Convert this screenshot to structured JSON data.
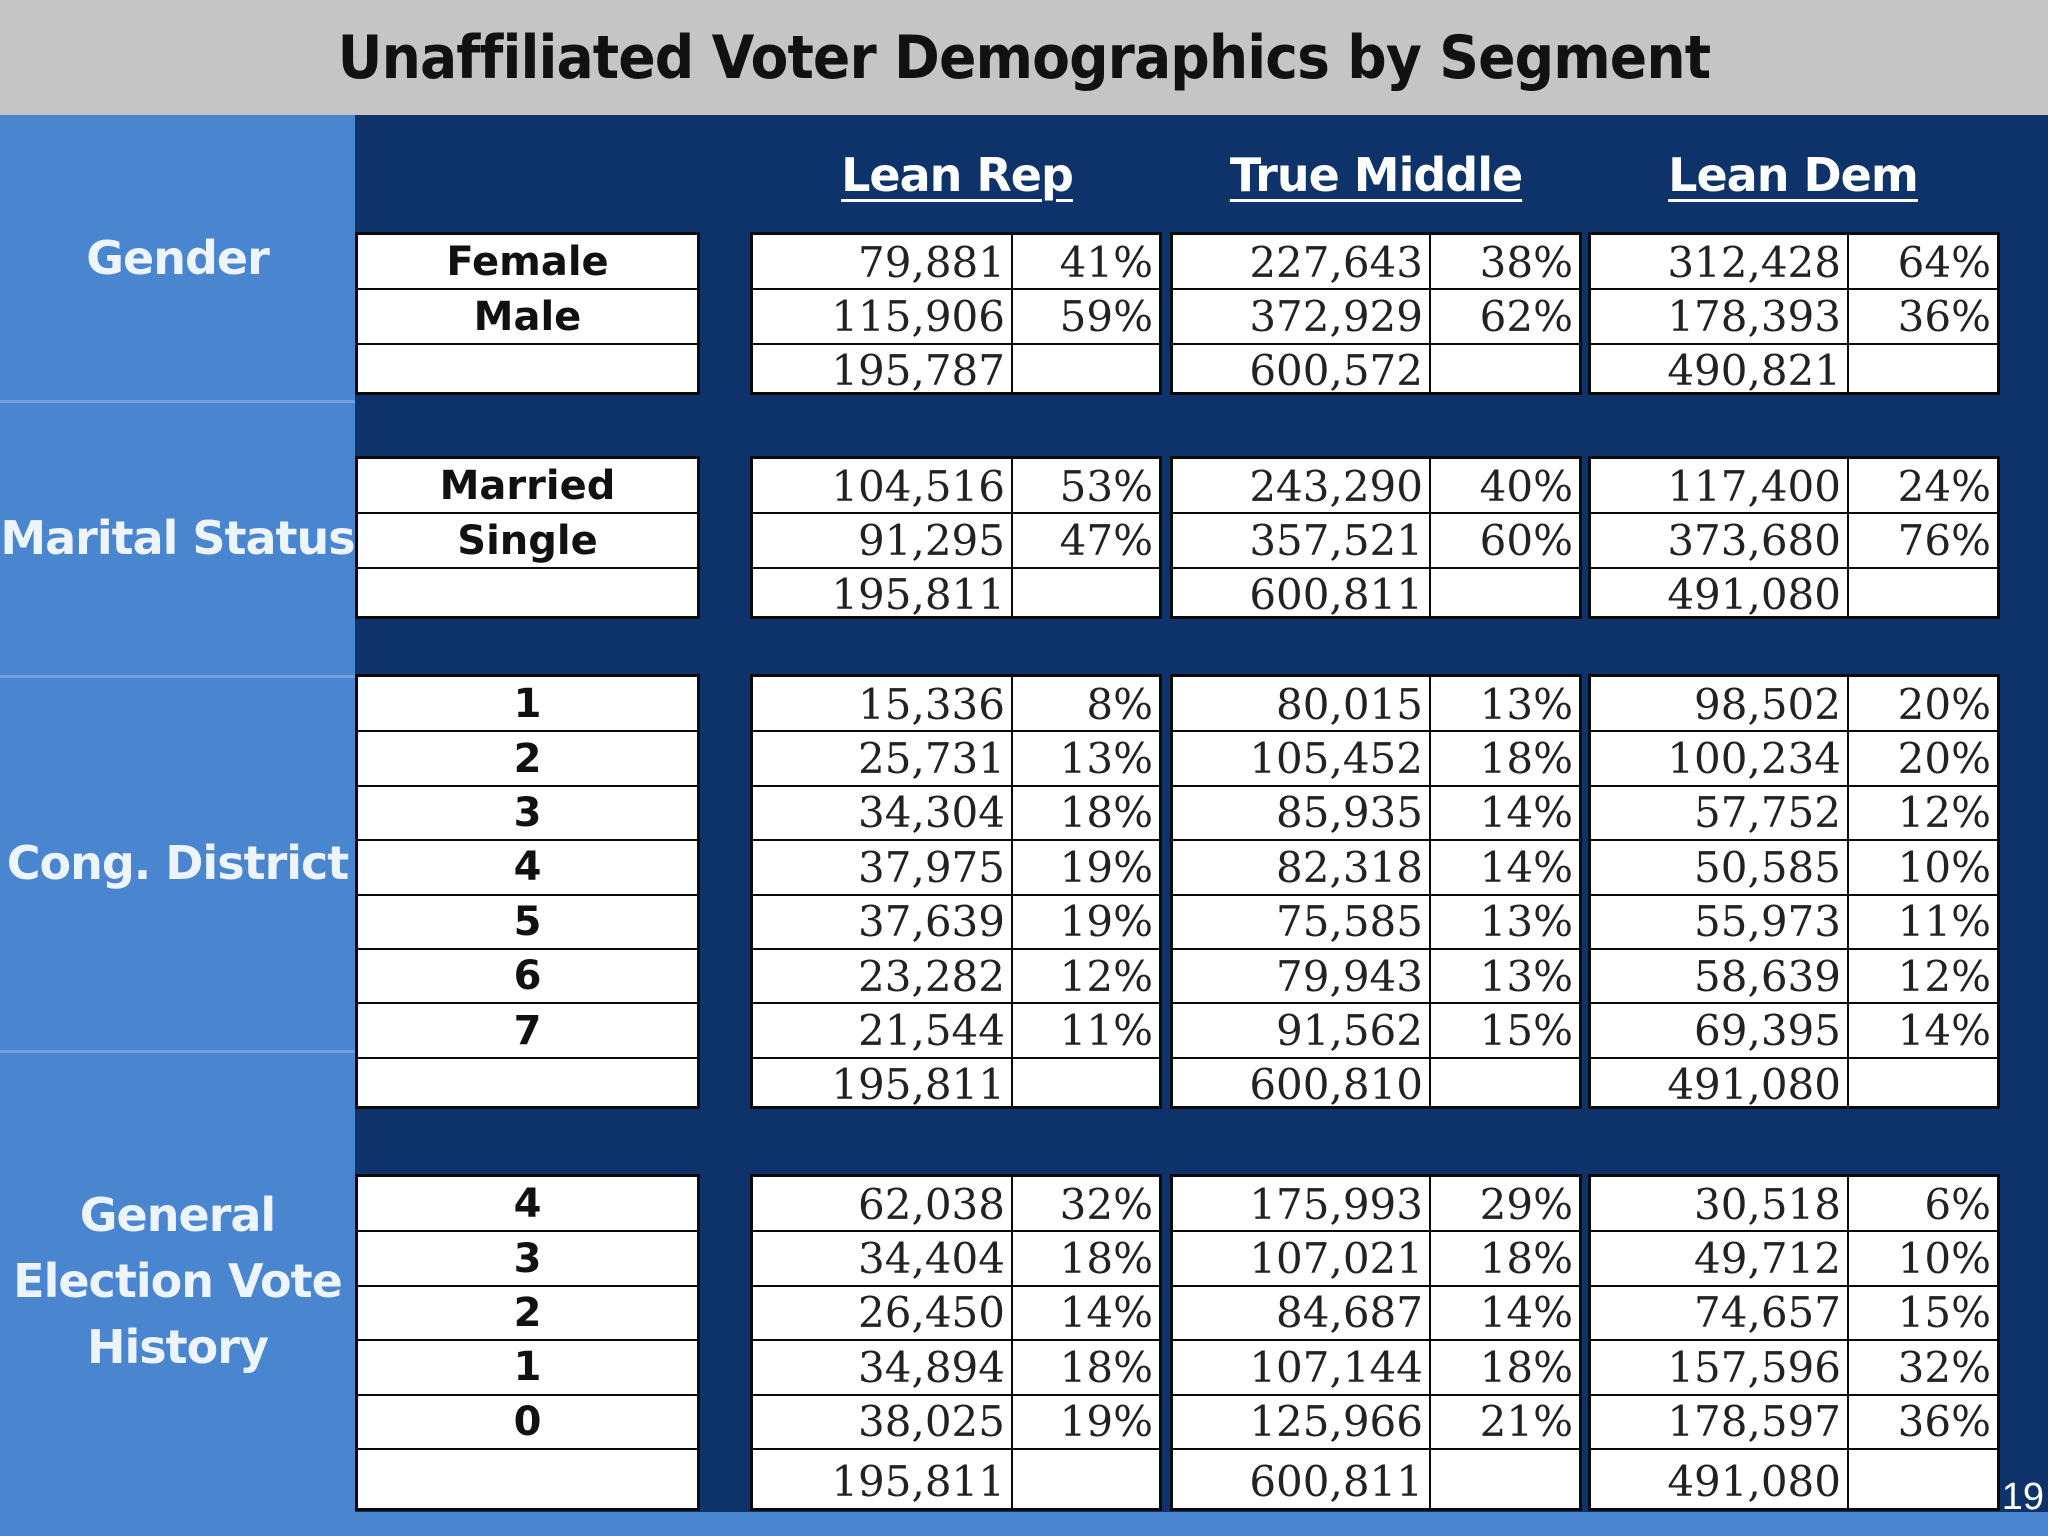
{
  "title": "Unaffiliated Voter Demographics by Segment",
  "page_number": "19",
  "segments": [
    "Lean Rep",
    "True Middle",
    "Lean Dem"
  ],
  "sections": [
    {
      "label": "Gender",
      "rows": [
        {
          "category": "Female",
          "values": [
            [
              "79,881",
              "41%"
            ],
            [
              "227,643",
              "38%"
            ],
            [
              "312,428",
              "64%"
            ]
          ]
        },
        {
          "category": "Male",
          "values": [
            [
              "115,906",
              "59%"
            ],
            [
              "372,929",
              "62%"
            ],
            [
              "178,393",
              "36%"
            ]
          ]
        },
        {
          "category": "",
          "values": [
            [
              "195,787",
              ""
            ],
            [
              "600,572",
              ""
            ],
            [
              "490,821",
              ""
            ]
          ]
        }
      ]
    },
    {
      "label": "Marital Status",
      "rows": [
        {
          "category": "Married",
          "values": [
            [
              "104,516",
              "53%"
            ],
            [
              "243,290",
              "40%"
            ],
            [
              "117,400",
              "24%"
            ]
          ]
        },
        {
          "category": "Single",
          "values": [
            [
              "91,295",
              "47%"
            ],
            [
              "357,521",
              "60%"
            ],
            [
              "373,680",
              "76%"
            ]
          ]
        },
        {
          "category": "",
          "values": [
            [
              "195,811",
              ""
            ],
            [
              "600,811",
              ""
            ],
            [
              "491,080",
              ""
            ]
          ]
        }
      ]
    },
    {
      "label": "Cong. District",
      "rows": [
        {
          "category": "1",
          "values": [
            [
              "15,336",
              "8%"
            ],
            [
              "80,015",
              "13%"
            ],
            [
              "98,502",
              "20%"
            ]
          ]
        },
        {
          "category": "2",
          "values": [
            [
              "25,731",
              "13%"
            ],
            [
              "105,452",
              "18%"
            ],
            [
              "100,234",
              "20%"
            ]
          ]
        },
        {
          "category": "3",
          "values": [
            [
              "34,304",
              "18%"
            ],
            [
              "85,935",
              "14%"
            ],
            [
              "57,752",
              "12%"
            ]
          ]
        },
        {
          "category": "4",
          "values": [
            [
              "37,975",
              "19%"
            ],
            [
              "82,318",
              "14%"
            ],
            [
              "50,585",
              "10%"
            ]
          ]
        },
        {
          "category": "5",
          "values": [
            [
              "37,639",
              "19%"
            ],
            [
              "75,585",
              "13%"
            ],
            [
              "55,973",
              "11%"
            ]
          ]
        },
        {
          "category": "6",
          "values": [
            [
              "23,282",
              "12%"
            ],
            [
              "79,943",
              "13%"
            ],
            [
              "58,639",
              "12%"
            ]
          ]
        },
        {
          "category": "7",
          "values": [
            [
              "21,544",
              "11%"
            ],
            [
              "91,562",
              "15%"
            ],
            [
              "69,395",
              "14%"
            ]
          ]
        },
        {
          "category": "",
          "values": [
            [
              "195,811",
              ""
            ],
            [
              "600,810",
              ""
            ],
            [
              "491,080",
              ""
            ]
          ]
        }
      ]
    },
    {
      "label": "General Election Vote History",
      "label_lines": [
        "General",
        "Election Vote",
        "History"
      ],
      "rows": [
        {
          "category": "4",
          "values": [
            [
              "62,038",
              "32%"
            ],
            [
              "175,993",
              "29%"
            ],
            [
              "30,518",
              "6%"
            ]
          ]
        },
        {
          "category": "3",
          "values": [
            [
              "34,404",
              "18%"
            ],
            [
              "107,021",
              "18%"
            ],
            [
              "49,712",
              "10%"
            ]
          ]
        },
        {
          "category": "2",
          "values": [
            [
              "26,450",
              "14%"
            ],
            [
              "84,687",
              "14%"
            ],
            [
              "74,657",
              "15%"
            ]
          ]
        },
        {
          "category": "1",
          "values": [
            [
              "34,894",
              "18%"
            ],
            [
              "107,144",
              "18%"
            ],
            [
              "157,596",
              "32%"
            ]
          ]
        },
        {
          "category": "0",
          "values": [
            [
              "38,025",
              "19%"
            ],
            [
              "125,966",
              "21%"
            ],
            [
              "178,597",
              "36%"
            ]
          ]
        },
        {
          "category": "",
          "values": [
            [
              "195,811",
              ""
            ],
            [
              "600,811",
              ""
            ],
            [
              "491,080",
              ""
            ]
          ]
        }
      ]
    }
  ]
}
